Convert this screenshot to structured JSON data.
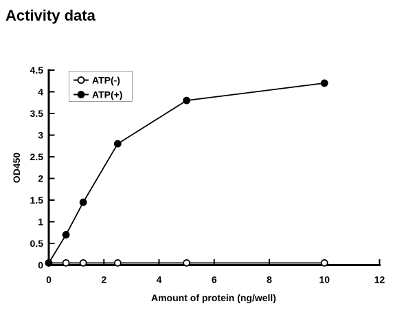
{
  "chart_data": {
    "type": "line",
    "title": "Activity data",
    "xlabel": "Amount of protein (ng/well)",
    "ylabel": "OD450",
    "x": [
      0,
      0.625,
      1.25,
      2.5,
      5,
      10
    ],
    "series": [
      {
        "name": "ATP(-)",
        "marker": "open-circle",
        "values": [
          0.05,
          0.05,
          0.05,
          0.05,
          0.05,
          0.05
        ]
      },
      {
        "name": "ATP(+)",
        "marker": "filled-circle",
        "values": [
          0.05,
          0.7,
          1.45,
          2.8,
          3.8,
          4.2
        ]
      }
    ],
    "xlim": [
      0,
      12
    ],
    "ylim": [
      0,
      4.5
    ],
    "xticks": [
      0,
      2,
      4,
      6,
      8,
      10,
      12
    ],
    "yticks": [
      0,
      0.5,
      1,
      1.5,
      2,
      2.5,
      3,
      3.5,
      4,
      4.5
    ],
    "grid": false,
    "tick_style": "inside",
    "legend_position": "top-left-inside",
    "colors": {
      "foreground": "#000000",
      "background": "#ffffff",
      "legend_border": "#999999"
    }
  }
}
